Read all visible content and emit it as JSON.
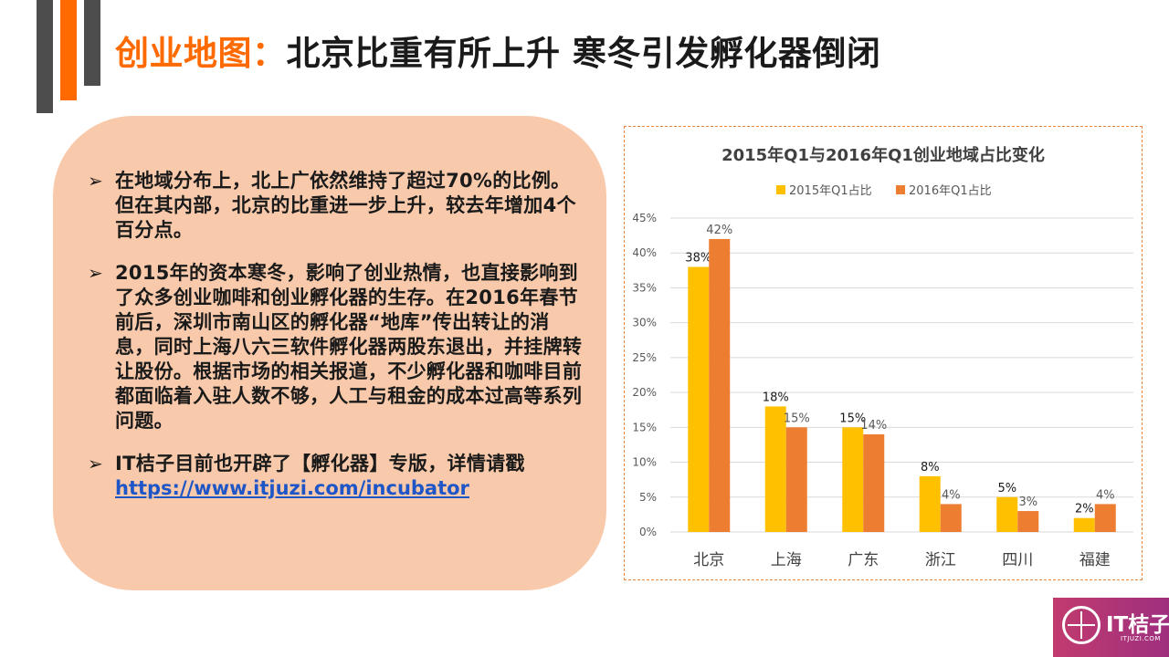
{
  "slide": {
    "title_accent": "创业地图：",
    "title_main": "北京比重有所上升  寒冬引发孵化器倒闭"
  },
  "bullets": [
    {
      "arrow": "➢",
      "text": "在地域分布上，北上广依然维持了超过70%的比例。但在其内部，北京的比重进一步上升，较去年增加4个百分点。"
    },
    {
      "arrow": "➢",
      "text": "2015年的资本寒冬，影响了创业热情，也直接影响到了众多创业咖啡和创业孵化器的生存。在2016年春节前后，深圳市南山区的孵化器“地库”传出转让的消息，同时上海八六三软件孵化器两股东退出，并挂牌转让股份。根据市场的相关报道，不少孵化器和咖啡目前都面临着入驻人数不够，人工与租金的成本过高等系列问题。"
    },
    {
      "arrow": "➢",
      "text": "IT桔子目前也开辟了【孵化器】专版，详情请戳",
      "link": "https://www.itjuzi.com/incubator"
    }
  ],
  "logo": {
    "name": "IT桔子",
    "sub": "ITJUZI.COM",
    "icon": "orange-slice-icon"
  },
  "colors": {
    "accent": "#ff6a00",
    "series_2015": "#ffc000",
    "series_2016": "#ed7d31",
    "bubble": "#f8c9aa",
    "link": "#1f56c7"
  },
  "chart_data": {
    "type": "bar",
    "title": "2015年Q1与2016年Q1创业地域占比变化",
    "categories": [
      "北京",
      "上海",
      "广东",
      "浙江",
      "四川",
      "福建"
    ],
    "series": [
      {
        "name": "2015年Q1占比",
        "values": [
          38,
          18,
          15,
          8,
          5,
          2
        ],
        "labels": [
          "38%",
          "18%",
          "15%",
          "8%",
          "5%",
          "2%"
        ],
        "color": "#ffc000"
      },
      {
        "name": "2016年Q1占比",
        "values": [
          42,
          15,
          14,
          4,
          3,
          4
        ],
        "labels": [
          "42%",
          "15%",
          "14%",
          "4%",
          "3%",
          "4%"
        ],
        "color": "#ed7d31"
      }
    ],
    "ylim": [
      0,
      45
    ],
    "yticks": [
      "0%",
      "5%",
      "10%",
      "15%",
      "20%",
      "25%",
      "30%",
      "35%",
      "40%",
      "45%"
    ],
    "grid": true,
    "legend": "top-center"
  }
}
